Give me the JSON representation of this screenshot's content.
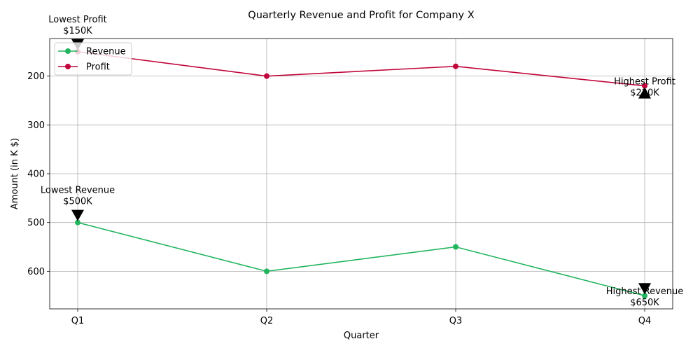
{
  "chart_data": {
    "type": "line",
    "title": "Quarterly Revenue and Profit for Company X",
    "xlabel": "Quarter",
    "ylabel": "Amount (in K $)",
    "categories": [
      "Q1",
      "Q2",
      "Q3",
      "Q4"
    ],
    "y_axis_inverted": true,
    "ylim": [
      677,
      123
    ],
    "yticks": [
      200,
      300,
      400,
      500,
      600
    ],
    "grid": true,
    "legend_position": "top-left",
    "series": [
      {
        "name": "Revenue",
        "color": "#22b55e",
        "values": [
          500,
          600,
          550,
          650
        ]
      },
      {
        "name": "Profit",
        "color": "#c1063b",
        "values": [
          150,
          200,
          180,
          220
        ]
      }
    ],
    "annotations": [
      {
        "series": "Profit",
        "category": "Q1",
        "lines": [
          "Lowest Profit",
          "$150K"
        ],
        "arrow": "down",
        "text_side": "above"
      },
      {
        "series": "Profit",
        "category": "Q4",
        "lines": [
          "Highest Profit",
          "$220K"
        ],
        "arrow": "up",
        "text_side": "below"
      },
      {
        "series": "Revenue",
        "category": "Q1",
        "lines": [
          "Lowest Revenue",
          "$500K"
        ],
        "arrow": "down",
        "text_side": "above"
      },
      {
        "series": "Revenue",
        "category": "Q4",
        "lines": [
          "Highest Revenue",
          "$650K"
        ],
        "arrow": "down",
        "text_side": "below"
      }
    ]
  }
}
